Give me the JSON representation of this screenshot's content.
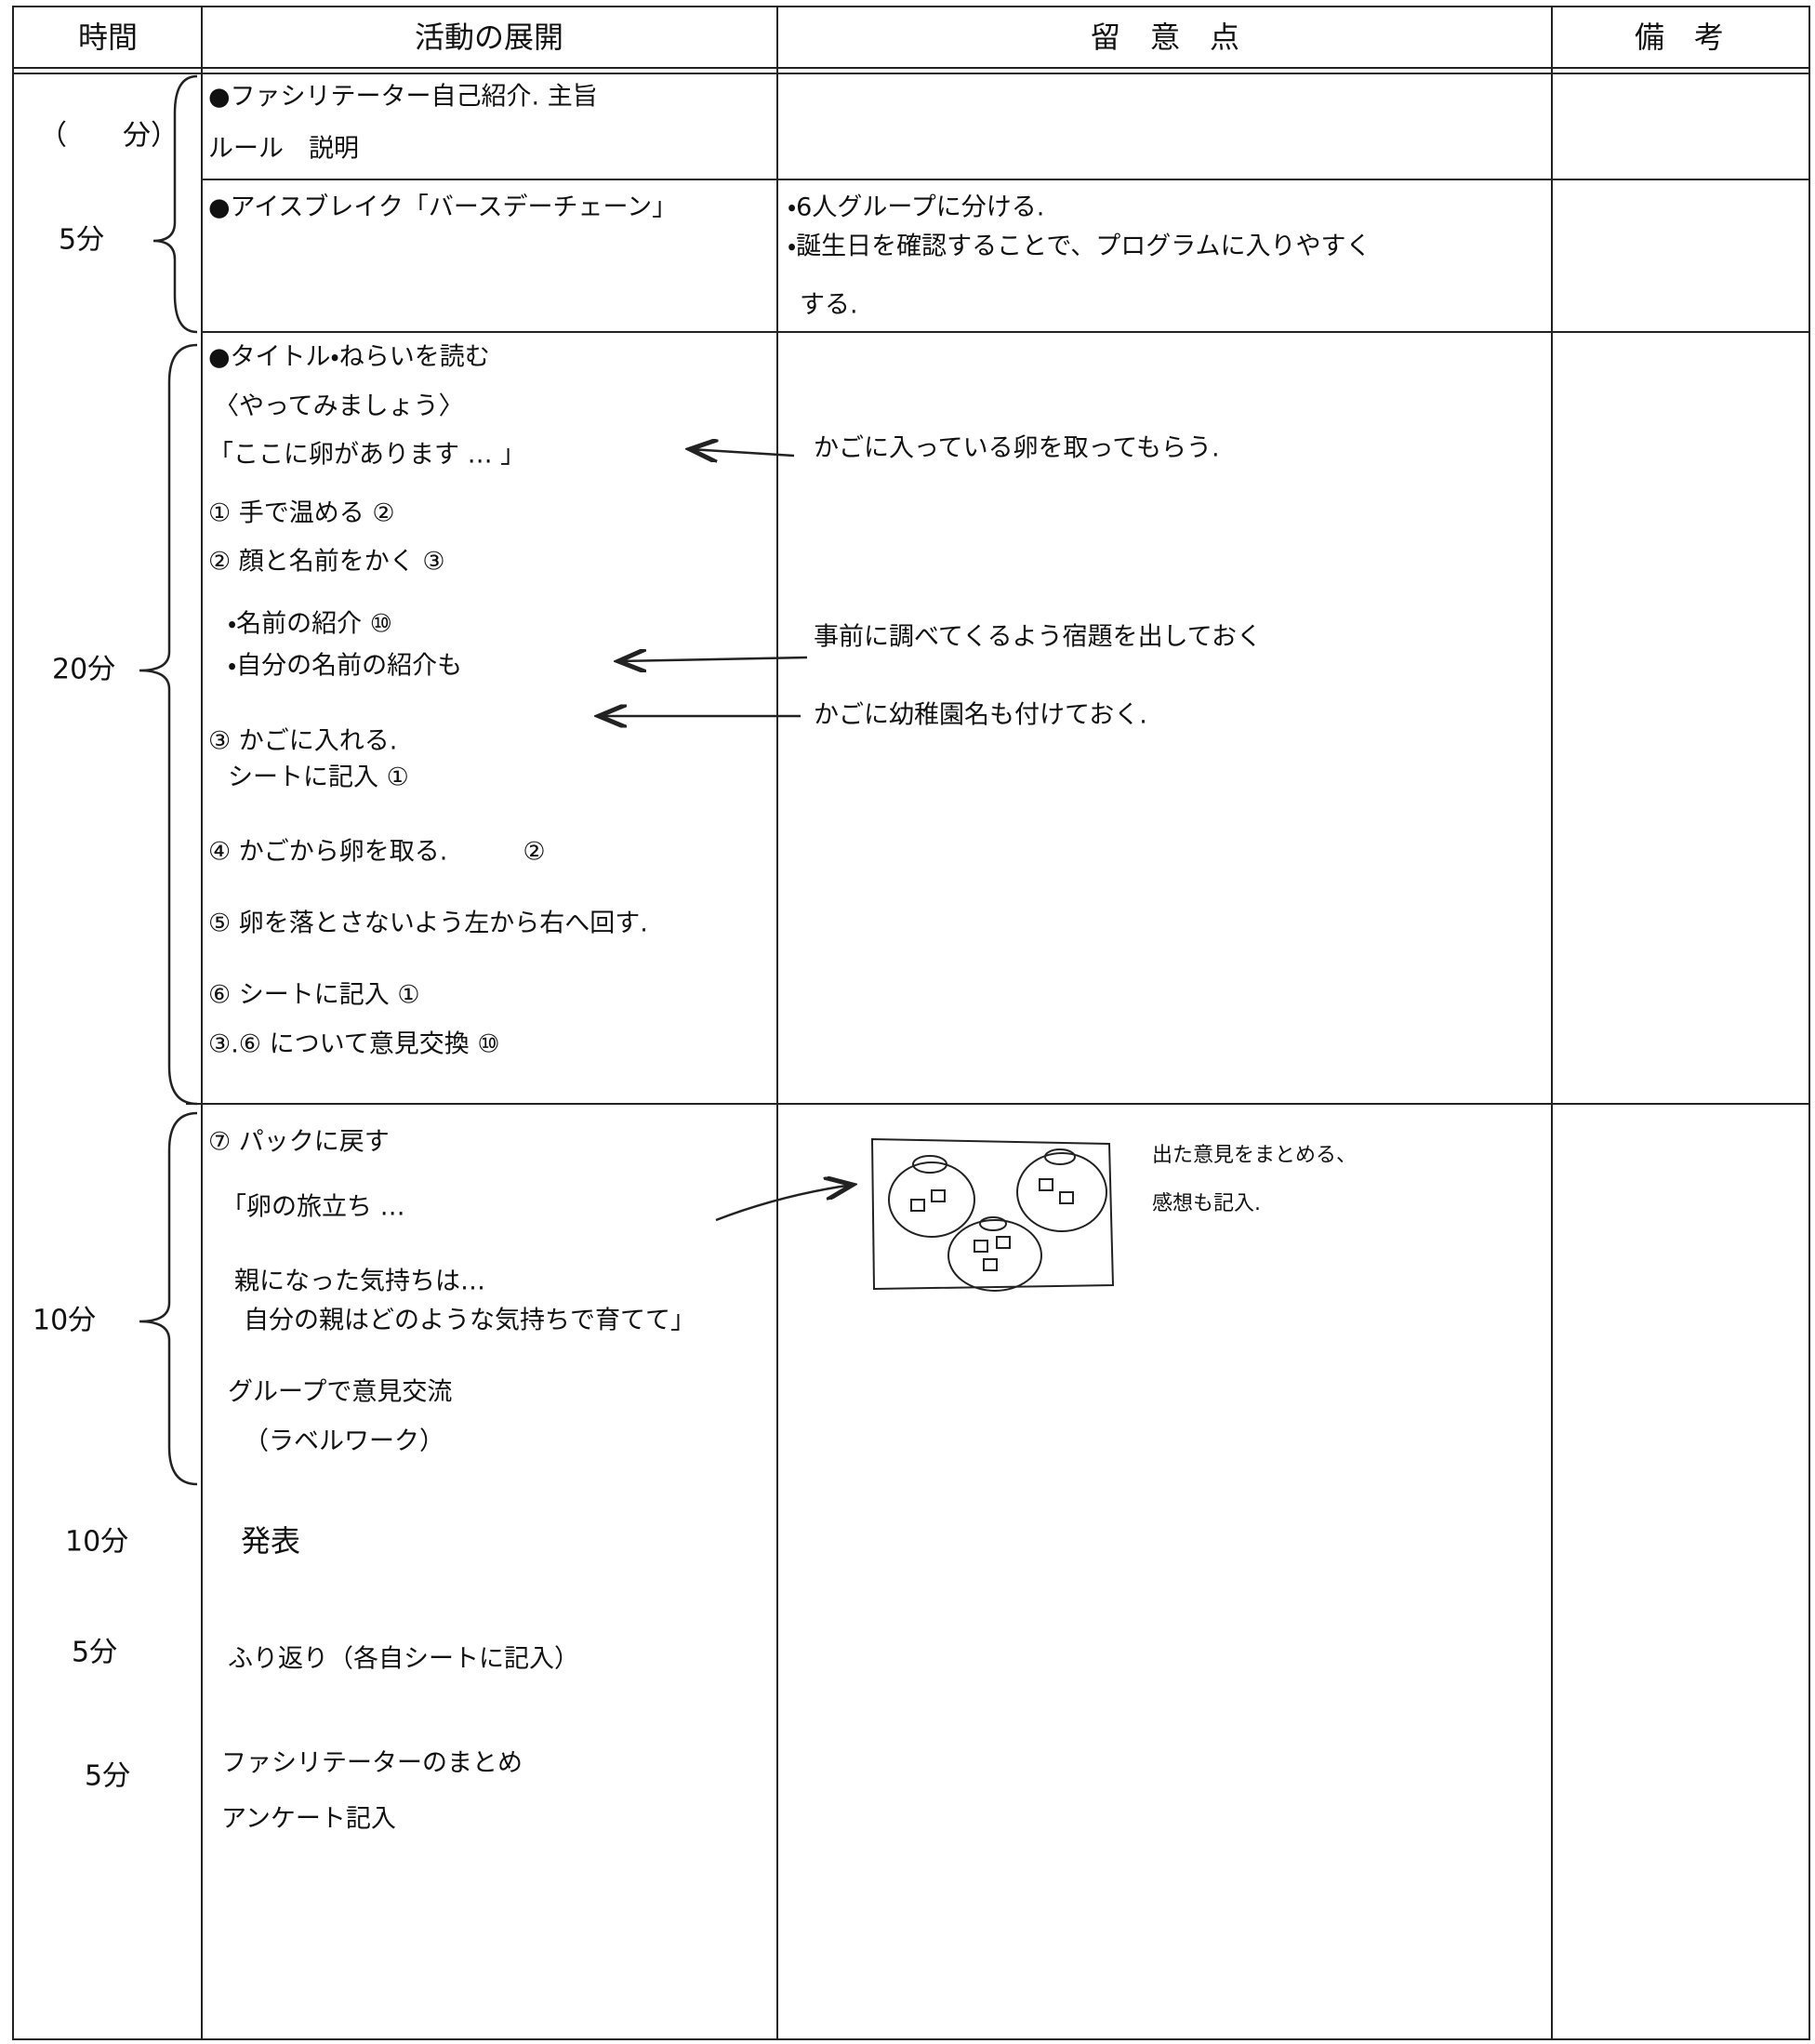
{
  "header": {
    "columns": [
      "時間",
      "活動の展開",
      "留　意　点",
      "備　考"
    ]
  },
  "rows": [
    {
      "time": "（　　分）",
      "activities": [
        "●ファシリテーター自己紹介. 主旨",
        "ルール　説明"
      ]
    },
    {
      "time": "5分",
      "activities": [
        "●アイスブレイク「バースデーチェーン」"
      ],
      "notes": [
        "・6人グループに分ける.",
        "・誕生日を確認することで、プログラムに入りやすく",
        "する."
      ]
    },
    {
      "time": "20分",
      "activities": [
        "●タイトル・ねらいを読む",
        "〈やってみましょう〉",
        "「ここに卵があります … 」",
        "① 手で温める ②",
        "② 顔と名前をかく ③",
        "・名前の紹介 ⑩",
        "・自分の名前の紹介も",
        "③ かごに入れる.",
        "シートに記入 ①",
        "④ かごから卵を取る.　　　②",
        "⑤ 卵を落とさないよう左から右へ回す.",
        "⑥ シートに記入 ①",
        "③.⑥ について意見交換 ⑩"
      ],
      "notes": [
        "かごに入っている卵を取ってもらう.",
        "事前に調べてくるよう宿題を出しておく",
        "かごに幼稚園名も付けておく."
      ]
    },
    {
      "time": "10分",
      "activities": [
        "⑦ パックに戻す",
        "「卵の旅立ち …",
        "親になった気持ちは…",
        "自分の親はどのような気持ちで育てて」",
        "グループで意見交流",
        "（ラベルワーク）"
      ],
      "notes": [
        "出た意見をまとめる、",
        "感想も記入."
      ]
    },
    {
      "time": "10分",
      "activities": [
        "発表"
      ]
    },
    {
      "time": "5分",
      "activities": [
        "ふり返り（各自シートに記入）"
      ]
    },
    {
      "time": "5分",
      "activities": [
        "ファシリテーターのまとめ",
        "アンケート記入"
      ]
    }
  ]
}
